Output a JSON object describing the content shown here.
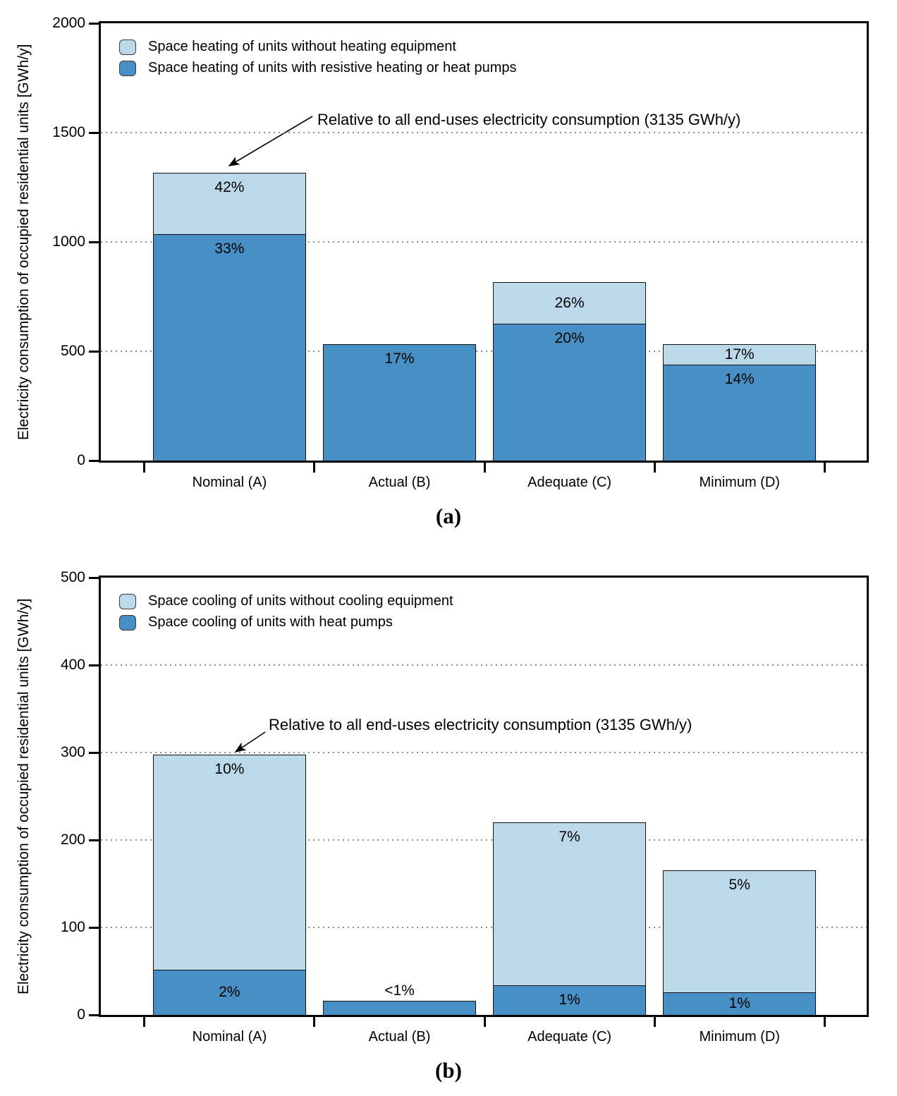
{
  "palette": {
    "light": "#bcd9ea",
    "dark": "#478fc4",
    "bar_border": "#111111",
    "grid": "#8c8c8c",
    "axis": "#000000"
  },
  "chart_data": [
    {
      "type": "bar",
      "stacked": true,
      "caption": "(a)",
      "ylabel": "Electricity consumption of occupied residential units [GWh/y]",
      "ylim": [
        0,
        2000
      ],
      "yticks": [
        0,
        500,
        1000,
        1500,
        2000
      ],
      "grid": "dotted horizontal at yticks",
      "legend_position": "top-left inside",
      "categories": [
        "Nominal (A)",
        "Actual (B)",
        "Adequate (C)",
        "Minimum (D)"
      ],
      "legend": [
        {
          "label": "Space heating of units without heating equipment",
          "color_key": "light"
        },
        {
          "label": "Space heating of units with resistive heating or heat pumps",
          "color_key": "dark"
        }
      ],
      "annotation": "Relative to all end-uses electricity consumption (3135 GWh/y)",
      "unit": "GWh/y",
      "series": [
        {
          "name": "Space heating of units with resistive heating or heat pumps",
          "color_key": "dark",
          "values": [
            1035,
            533,
            627,
            439
          ],
          "labels": [
            "33%",
            "17%",
            "20%",
            "14%"
          ]
        },
        {
          "name": "Space heating of units without heating equipment",
          "color_key": "light",
          "values": [
            282,
            0,
            188,
            94
          ],
          "labels": [
            "42%",
            "",
            "26%",
            "17%"
          ]
        }
      ],
      "totals": [
        1317,
        533,
        815,
        533
      ]
    },
    {
      "type": "bar",
      "stacked": true,
      "caption": "(b)",
      "ylabel": "Electricity consumption of occupied residential units [GWh/y]",
      "ylim": [
        0,
        500
      ],
      "yticks": [
        0,
        100,
        200,
        300,
        400,
        500
      ],
      "grid": "dotted horizontal at yticks",
      "legend_position": "top-left inside",
      "categories": [
        "Nominal (A)",
        "Actual (B)",
        "Adequate (C)",
        "Minimum (D)"
      ],
      "legend": [
        {
          "label": "Space cooling of units without cooling equipment",
          "color_key": "light"
        },
        {
          "label": "Space cooling of units with heat pumps",
          "color_key": "dark"
        }
      ],
      "annotation": "Relative to all end-uses electricity consumption (3135 GWh/y)",
      "unit": "GWh/y",
      "series": [
        {
          "name": "Space cooling of units with heat pumps",
          "color_key": "dark",
          "values": [
            52,
            16,
            34,
            26
          ],
          "labels": [
            "2%",
            "<1%",
            "1%",
            "1%"
          ]
        },
        {
          "name": "Space cooling of units without cooling equipment",
          "color_key": "light",
          "values": [
            246,
            0,
            186,
            139
          ],
          "labels": [
            "10%",
            "",
            "7%",
            "5%"
          ]
        }
      ],
      "totals": [
        298,
        16,
        220,
        165
      ]
    }
  ]
}
